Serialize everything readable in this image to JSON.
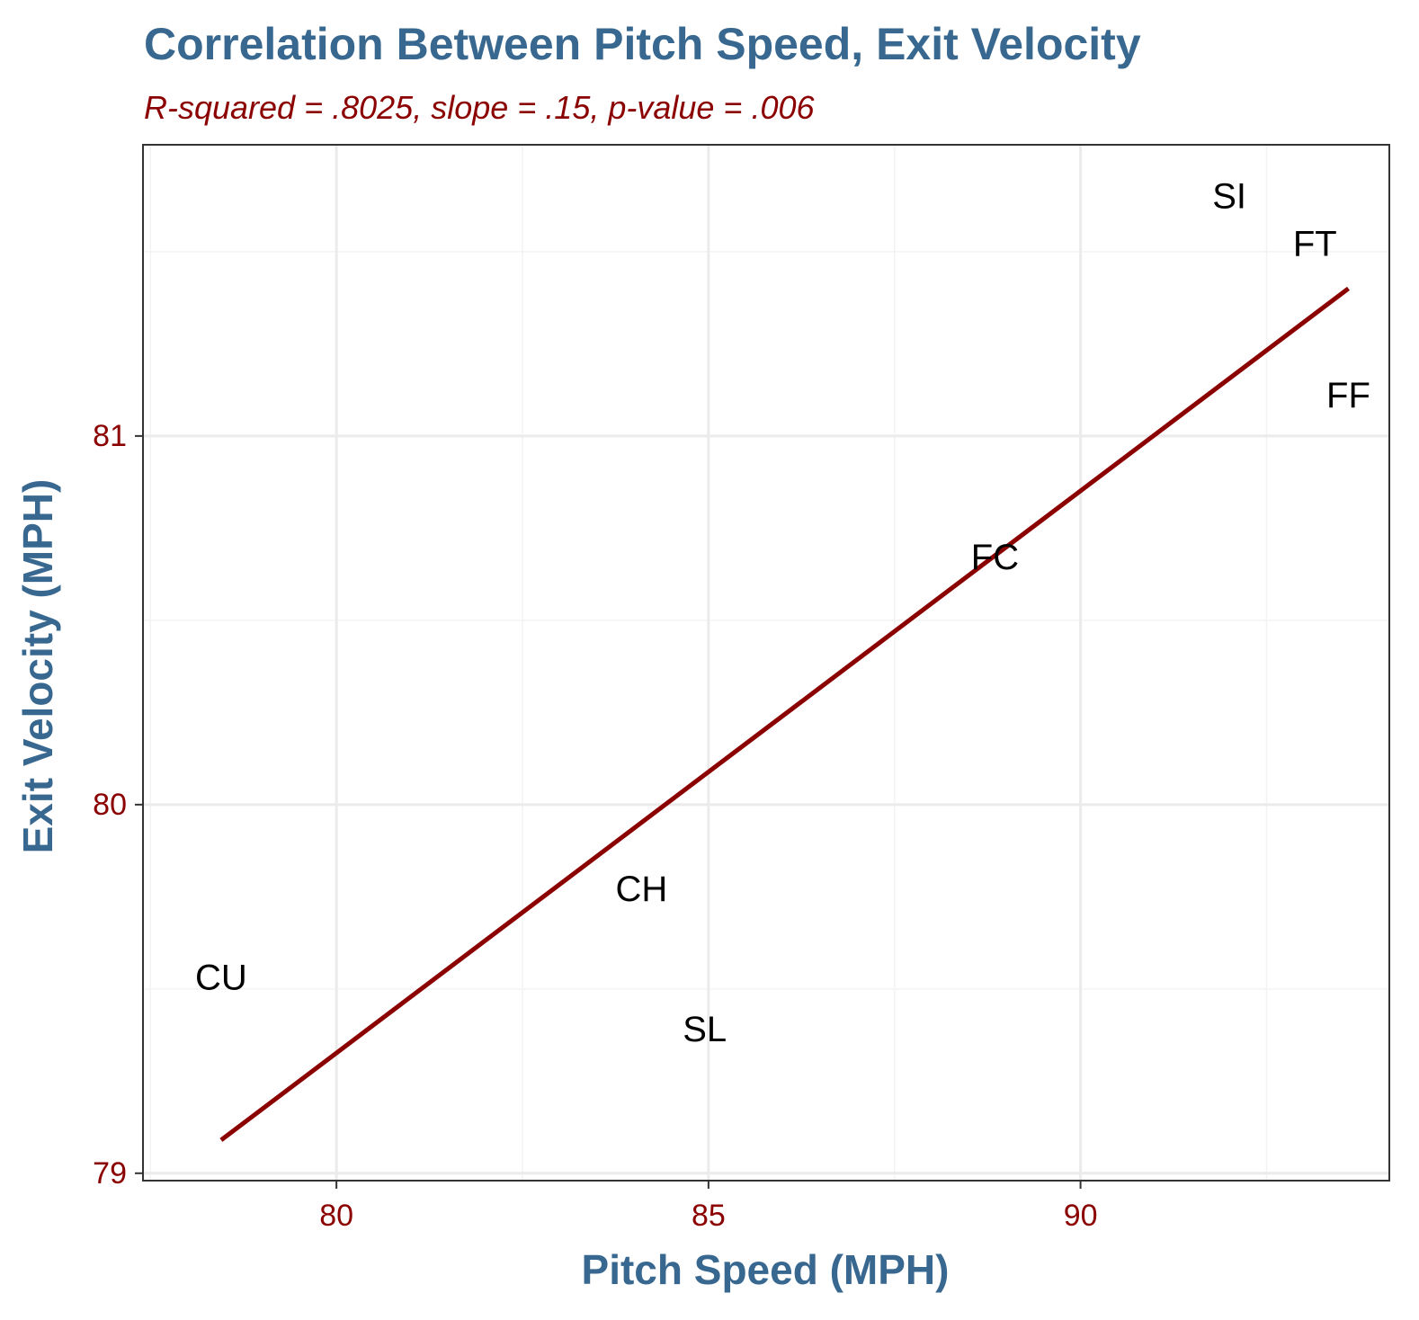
{
  "chart_data": {
    "type": "scatter",
    "title": "Correlation Between Pitch Speed, Exit Velocity",
    "subtitle": "R-squared = .8025, slope = .15, p-value = .006",
    "xlabel": "Pitch Speed (MPH)",
    "ylabel": "Exit Velocity (MPH)",
    "xlim": [
      77.4,
      94.15
    ],
    "ylim": [
      78.98,
      81.79
    ],
    "xticks": [
      80,
      85,
      90
    ],
    "yticks": [
      79,
      80,
      81
    ],
    "grid": true,
    "points": [
      {
        "label": "SI",
        "x": 92.0,
        "y": 81.65
      },
      {
        "label": "FT",
        "x": 93.15,
        "y": 81.52
      },
      {
        "label": "FF",
        "x": 93.6,
        "y": 81.11
      },
      {
        "label": "FC",
        "x": 88.85,
        "y": 80.67
      },
      {
        "label": "CH",
        "x": 84.1,
        "y": 79.77
      },
      {
        "label": "CU",
        "x": 78.45,
        "y": 79.53
      },
      {
        "label": "SL",
        "x": 84.95,
        "y": 79.39
      }
    ],
    "fit_line": {
      "x": [
        78.45,
        93.6
      ],
      "y": [
        79.09,
        81.4
      ]
    },
    "colors": {
      "title": "#386890",
      "axis_title": "#386890",
      "subtitle": "#8b0000",
      "tick_label": "#8b0000",
      "fit_line": "#8b0000",
      "point_label": "#000000",
      "grid_major": "#ebebeb",
      "grid_minor": "#f3f3f3",
      "panel_border": "#333333"
    }
  }
}
